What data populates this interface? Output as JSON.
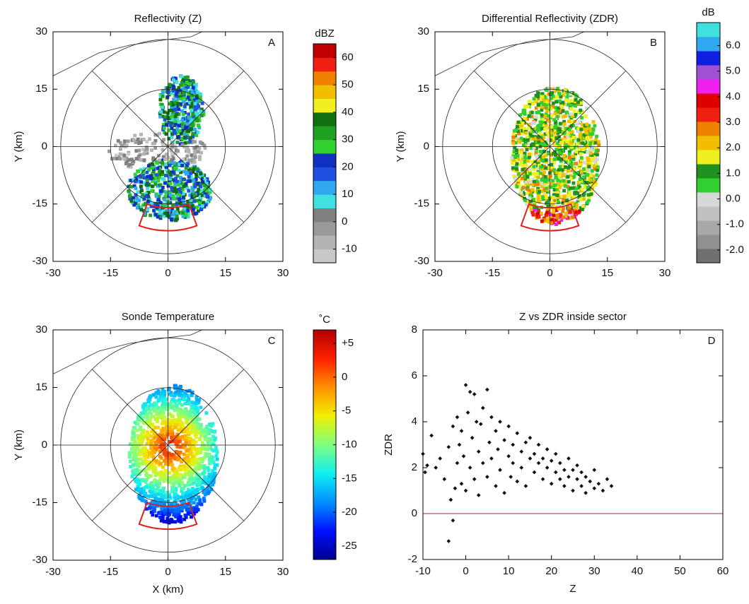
{
  "chart_data": [
    {
      "type": "ppi",
      "title": "Reflectivity (Z)",
      "label": "A",
      "ylabel": "Y (km)",
      "xlim": [
        -30,
        30
      ],
      "ylim": [
        -30,
        30
      ],
      "xticks": [
        -30,
        -15,
        0,
        15,
        30
      ],
      "yticks": [
        -30,
        -15,
        0,
        15,
        30
      ],
      "colorbar": {
        "unit": "dBZ",
        "clim": [
          -15,
          65
        ],
        "ticks": [
          -10,
          0,
          10,
          20,
          30,
          40,
          50,
          60
        ],
        "colors": [
          "#c8c8c8",
          "#b4b4b4",
          "#9a9a9a",
          "#808080",
          "#40e0e0",
          "#30a8f0",
          "#2050e0",
          "#1030c0",
          "#30d030",
          "#20a020",
          "#107010",
          "#f0f020",
          "#f0c000",
          "#f08000",
          "#f02010",
          "#c00000"
        ]
      }
    },
    {
      "type": "ppi",
      "title": "Differential Reflectivity (ZDR)",
      "label": "B",
      "ylabel": "Y (km)",
      "xlim": [
        -30,
        30
      ],
      "ylim": [
        -30,
        30
      ],
      "xticks": [
        -30,
        -15,
        0,
        15,
        30
      ],
      "yticks": [
        -30,
        -15,
        0,
        15,
        30
      ],
      "colorbar": {
        "unit": "dB",
        "clim": [
          -2.5,
          6.9
        ],
        "ticks": [
          {
            "value": -2,
            "label": "-2.0"
          },
          {
            "value": -1,
            "label": "-1.0"
          },
          {
            "value": 0,
            "label": "0.0"
          },
          {
            "value": 1,
            "label": "1.0"
          },
          {
            "value": 2,
            "label": "2.0"
          },
          {
            "value": 3,
            "label": "3.0"
          },
          {
            "value": 4,
            "label": "4.0"
          },
          {
            "value": 5,
            "label": "5.0"
          },
          {
            "value": 6,
            "label": "6.0"
          }
        ],
        "colors": [
          "#707070",
          "#909090",
          "#a8a8a8",
          "#c0c0c0",
          "#d8d8d8",
          "#30d030",
          "#209020",
          "#f0f020",
          "#f0c000",
          "#f08000",
          "#f02010",
          "#e00000",
          "#f020f0",
          "#a050d0",
          "#1020e0",
          "#30a8f0",
          "#40e0e0"
        ]
      }
    },
    {
      "type": "ppi",
      "title": "Sonde Temperature",
      "label": "C",
      "ylabel": "Y (km)",
      "xlabel": "X (km)",
      "xlim": [
        -30,
        30
      ],
      "ylim": [
        -30,
        30
      ],
      "xticks": [
        -30,
        -15,
        0,
        15,
        30
      ],
      "yticks": [
        -30,
        -15,
        0,
        15,
        30
      ],
      "colorbar": {
        "unit": "˚C",
        "clim": [
          -27,
          7
        ],
        "gradient": true,
        "ticks": [
          {
            "value": 5,
            "label": "+5"
          },
          0,
          -5,
          -10,
          -15,
          -20,
          -25
        ],
        "colors": [
          "#00008c",
          "#0010ff",
          "#0090ff",
          "#10f0f0",
          "#80ff80",
          "#f0f000",
          "#ff9000",
          "#ff2000",
          "#b00000"
        ]
      }
    },
    {
      "type": "scatter",
      "title": "Z vs ZDR inside sector",
      "label": "D",
      "xlabel": "Z",
      "ylabel": "ZDR",
      "xlim": [
        -10,
        60
      ],
      "ylim": [
        -2,
        8
      ],
      "xticks": [
        -10,
        0,
        10,
        20,
        30,
        40,
        50,
        60
      ],
      "yticks": [
        -2,
        0,
        2,
        4,
        6,
        8
      ],
      "color": "#111111",
      "reference_line": {
        "y": 0,
        "color": "#c05050"
      },
      "x": [
        -10,
        -9.5,
        -9,
        -8,
        -7,
        -6,
        -5,
        -4,
        -4,
        -3.5,
        -3,
        -3,
        -2.5,
        -2,
        -2,
        -1.5,
        -1,
        -1,
        -0.5,
        0,
        0,
        0.5,
        1,
        1,
        1.5,
        2,
        2,
        2.5,
        3,
        3,
        3.5,
        4,
        4,
        5,
        5,
        5.5,
        6,
        6,
        7,
        7,
        7.5,
        8,
        8,
        9,
        9,
        10,
        10,
        10.5,
        11,
        11,
        12,
        12,
        13,
        13,
        14,
        14,
        15,
        15,
        16,
        16,
        17,
        17,
        18,
        18,
        19,
        19,
        20,
        20,
        21,
        21,
        22,
        22,
        23,
        23,
        24,
        24,
        25,
        25,
        26,
        26,
        27,
        27,
        28,
        28,
        29,
        30,
        30,
        31,
        32,
        33,
        34
      ],
      "y": [
        2.6,
        1.8,
        2.1,
        3.4,
        2.0,
        2.4,
        1.5,
        -1.2,
        2.9,
        0.6,
        -0.3,
        3.8,
        1.1,
        2.2,
        4.2,
        3.0,
        1.3,
        3.6,
        2.5,
        5.6,
        1.0,
        4.4,
        5.3,
        2.0,
        3.3,
        5.2,
        1.5,
        4.0,
        2.7,
        0.8,
        3.9,
        2.2,
        4.6,
        5.4,
        1.6,
        3.1,
        4.2,
        2.4,
        1.2,
        3.6,
        2.8,
        4.0,
        1.9,
        3.2,
        0.9,
        2.5,
        3.8,
        1.6,
        3.0,
        2.2,
        3.5,
        1.4,
        2.7,
        2.0,
        3.1,
        1.2,
        2.4,
        3.3,
        1.8,
        2.6,
        2.2,
        3.0,
        1.5,
        2.4,
        2.0,
        2.8,
        1.3,
        2.3,
        1.8,
        2.6,
        1.5,
        2.2,
        1.9,
        1.2,
        2.4,
        1.6,
        1.0,
        1.9,
        1.5,
        2.1,
        1.2,
        1.8,
        1.6,
        0.9,
        1.4,
        1.1,
        1.9,
        1.3,
        1.0,
        1.5,
        1.2
      ]
    }
  ]
}
